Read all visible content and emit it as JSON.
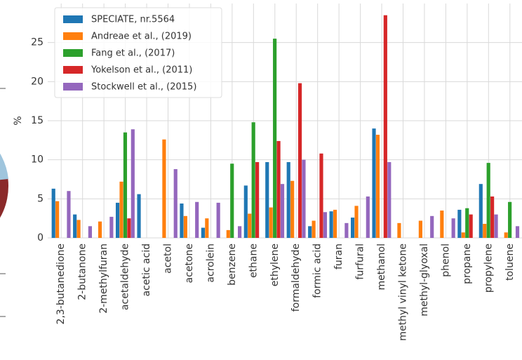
{
  "chart_data": {
    "type": "bar",
    "ylabel": "%",
    "categories": [
      "2,3-butanedione",
      "2-butanone",
      "2-methylfuran",
      "acetaldehyde",
      "acetic acid",
      "acetol",
      "acetone",
      "acrolein",
      "benzene",
      "ethane",
      "ethylene",
      "formaldehyde",
      "formic acid",
      "furan",
      "furfural",
      "methanol",
      "methyl vinyl ketone",
      "methyl-glyoxal",
      "phenol",
      "propane",
      "propylene",
      "toluene"
    ],
    "series": [
      {
        "name": "SPECIATE, nr.5564",
        "color": "#1f77b4",
        "values": [
          6.3,
          3.0,
          null,
          4.5,
          5.6,
          null,
          4.4,
          1.3,
          null,
          6.7,
          9.7,
          9.7,
          1.5,
          3.4,
          2.6,
          14.0,
          null,
          null,
          null,
          3.6,
          6.9,
          null
        ]
      },
      {
        "name": "Andreae et al., (2019)",
        "color": "#ff7f0e",
        "values": [
          4.7,
          2.3,
          2.1,
          7.2,
          null,
          12.6,
          2.8,
          2.5,
          1.0,
          3.1,
          3.9,
          7.3,
          2.2,
          3.6,
          4.1,
          13.2,
          1.9,
          2.2,
          3.5,
          0.7,
          1.8,
          0.7
        ]
      },
      {
        "name": "Fang et al., (2017)",
        "color": "#2ca02c",
        "values": [
          null,
          null,
          null,
          13.5,
          null,
          null,
          null,
          null,
          9.5,
          14.8,
          25.5,
          null,
          null,
          null,
          null,
          null,
          null,
          null,
          null,
          3.8,
          9.6,
          4.6
        ]
      },
      {
        "name": "Yokelson et al., (2011)",
        "color": "#d62728",
        "values": [
          null,
          null,
          null,
          2.5,
          null,
          null,
          null,
          null,
          null,
          9.7,
          12.4,
          19.8,
          10.8,
          null,
          null,
          28.5,
          null,
          null,
          null,
          3.0,
          5.3,
          null
        ]
      },
      {
        "name": "Stockwell et al., (2015)",
        "color": "#9467bd",
        "values": [
          6.0,
          1.5,
          2.7,
          13.9,
          null,
          8.8,
          4.6,
          4.5,
          1.5,
          null,
          6.9,
          10.0,
          3.3,
          1.9,
          5.3,
          9.7,
          null,
          2.8,
          2.5,
          null,
          3.0,
          1.5
        ]
      }
    ],
    "ylim": [
      0,
      30
    ],
    "yticks": [
      0,
      5,
      10,
      15,
      20,
      25
    ],
    "grid": true,
    "legend": "upper left"
  }
}
